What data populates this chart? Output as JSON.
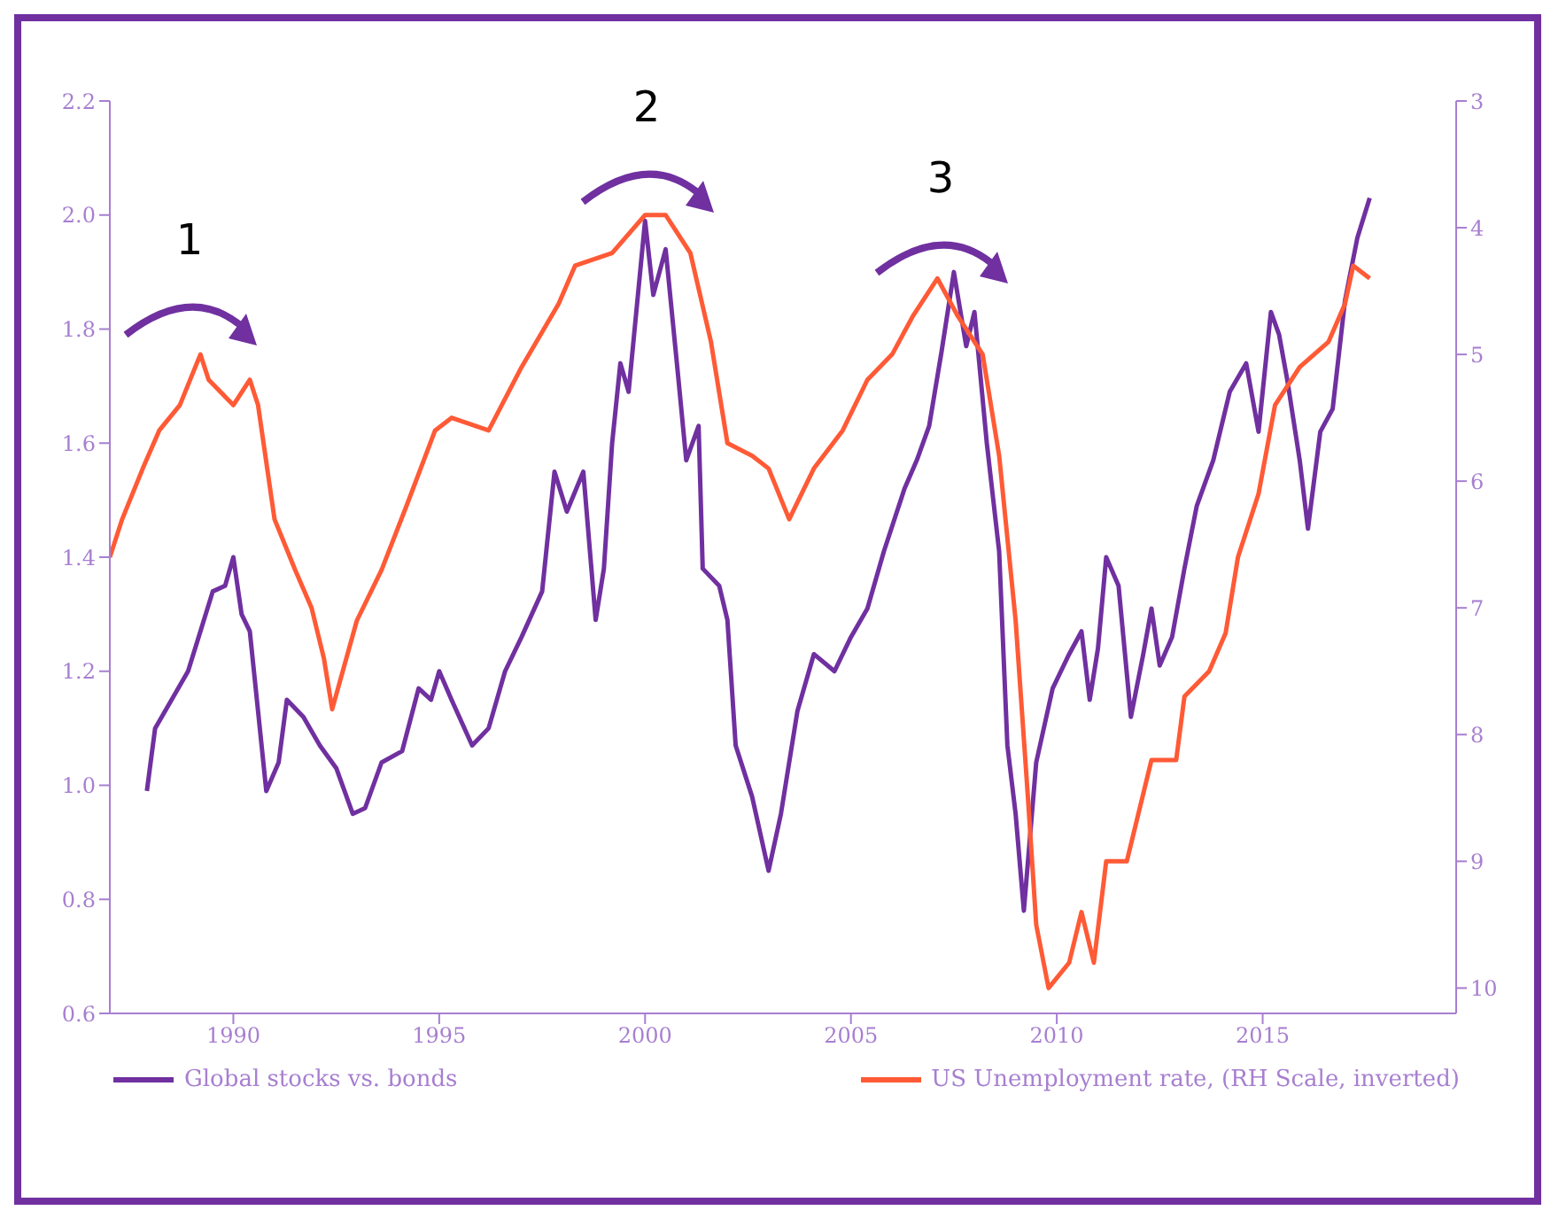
{
  "chart_data": {
    "type": "line",
    "xlim": [
      1987,
      2019.7
    ],
    "xticks": [
      1990,
      1995,
      2000,
      2005,
      2010,
      2015
    ],
    "ylim": [
      0.6,
      2.2
    ],
    "yticks": [
      0.6,
      0.8,
      {
        "value": 1.0,
        "label": "1.0"
      },
      1.2,
      1.4,
      1.6,
      1.8,
      {
        "value": 2.0,
        "label": "2.0"
      },
      2.2
    ],
    "y2lim": [
      10.2,
      3
    ],
    "y2ticks": [
      3,
      4,
      5,
      6,
      7,
      8,
      9,
      10
    ],
    "legend": "bottom",
    "grid": false,
    "annotations": [
      "1",
      "2",
      "3"
    ],
    "series": [
      {
        "name": "Global stocks vs. bonds",
        "color": "#7030a0",
        "x": [
          1987.9,
          1988.1,
          1988.5,
          1988.9,
          1989.2,
          1989.5,
          1989.8,
          1990.0,
          1990.2,
          1990.4,
          1990.6,
          1990.8,
          1991.1,
          1991.3,
          1991.7,
          1992.1,
          1992.5,
          1992.9,
          1993.2,
          1993.6,
          1994.1,
          1994.5,
          1994.8,
          1995.0,
          1995.3,
          1995.8,
          1996.2,
          1996.6,
          1997.0,
          1997.5,
          1997.8,
          1998.1,
          1998.5,
          1998.8,
          1999.0,
          1999.2,
          1999.4,
          1999.6,
          2000.0,
          2000.2,
          2000.5,
          2000.8,
          2001.0,
          2001.3,
          2001.4,
          2001.8,
          2002.0,
          2002.2,
          2002.6,
          2003.0,
          2003.3,
          2003.7,
          2004.1,
          2004.6,
          2005.0,
          2005.4,
          2005.8,
          2006.3,
          2006.6,
          2006.9,
          2007.2,
          2007.5,
          2007.8,
          2008.0,
          2008.3,
          2008.6,
          2008.8,
          2009.0,
          2009.2,
          2009.5,
          2009.9,
          2010.3,
          2010.6,
          2010.8,
          2011.0,
          2011.2,
          2011.5,
          2011.8,
          2012.1,
          2012.3,
          2012.5,
          2012.8,
          2013.1,
          2013.4,
          2013.8,
          2014.2,
          2014.6,
          2014.9,
          2015.2,
          2015.4,
          2015.6,
          2015.9,
          2016.1,
          2016.4,
          2016.7,
          2017.0,
          2017.3,
          2017.6
        ],
        "values": [
          0.99,
          1.1,
          1.15,
          1.2,
          1.27,
          1.34,
          1.35,
          1.4,
          1.3,
          1.27,
          1.13,
          0.99,
          1.04,
          1.15,
          1.12,
          1.07,
          1.03,
          0.95,
          0.96,
          1.04,
          1.06,
          1.17,
          1.15,
          1.2,
          1.15,
          1.07,
          1.1,
          1.2,
          1.26,
          1.34,
          1.55,
          1.48,
          1.55,
          1.29,
          1.38,
          1.6,
          1.74,
          1.69,
          1.99,
          1.86,
          1.94,
          1.72,
          1.57,
          1.63,
          1.38,
          1.35,
          1.29,
          1.07,
          0.98,
          0.85,
          0.95,
          1.13,
          1.23,
          1.2,
          1.26,
          1.31,
          1.41,
          1.52,
          1.57,
          1.63,
          1.76,
          1.9,
          1.77,
          1.83,
          1.6,
          1.41,
          1.07,
          0.95,
          0.78,
          1.04,
          1.17,
          1.23,
          1.27,
          1.15,
          1.24,
          1.4,
          1.35,
          1.12,
          1.23,
          1.31,
          1.21,
          1.26,
          1.38,
          1.49,
          1.57,
          1.69,
          1.74,
          1.62,
          1.83,
          1.79,
          1.71,
          1.57,
          1.45,
          1.62,
          1.66,
          1.85,
          1.96,
          2.03
        ]
      },
      {
        "name": "US Unemployment rate, (RH Scale, inverted)",
        "color": "#ff5a36",
        "axis": "y2",
        "x": [
          1987.0,
          1987.3,
          1987.8,
          1988.2,
          1988.7,
          1989.2,
          1989.4,
          1990.0,
          1990.4,
          1990.6,
          1991.0,
          1991.5,
          1991.9,
          1992.2,
          1992.4,
          1993.0,
          1993.6,
          1994.2,
          1994.9,
          1995.3,
          1996.2,
          1997.0,
          1997.9,
          1998.3,
          1999.2,
          2000.0,
          2000.5,
          2001.1,
          2001.6,
          2002.0,
          2002.6,
          2003.0,
          2003.5,
          2004.1,
          2004.8,
          2005.4,
          2006.0,
          2006.5,
          2007.1,
          2007.6,
          2008.2,
          2008.6,
          2009.0,
          2009.3,
          2009.5,
          2009.8,
          2010.3,
          2010.6,
          2010.9,
          2011.2,
          2011.7,
          2012.3,
          2012.9,
          2013.1,
          2013.7,
          2014.1,
          2014.4,
          2014.9,
          2015.3,
          2015.9,
          2016.6,
          2017.0,
          2017.2,
          2017.6
        ],
        "values": [
          6.6,
          6.3,
          5.9,
          5.6,
          5.4,
          5.0,
          5.2,
          5.4,
          5.2,
          5.4,
          6.3,
          6.7,
          7.0,
          7.4,
          7.8,
          7.1,
          6.7,
          6.2,
          5.6,
          5.5,
          5.6,
          5.1,
          4.6,
          4.3,
          4.2,
          3.9,
          3.9,
          4.2,
          4.9,
          5.7,
          5.8,
          5.9,
          6.3,
          5.9,
          5.6,
          5.2,
          5.0,
          4.7,
          4.4,
          4.7,
          5.0,
          5.8,
          7.1,
          8.5,
          9.5,
          10.0,
          9.8,
          9.4,
          9.8,
          9.0,
          9.0,
          8.2,
          8.2,
          7.7,
          7.5,
          7.2,
          6.6,
          6.1,
          5.4,
          5.1,
          4.9,
          4.6,
          4.3,
          4.4
        ]
      }
    ]
  }
}
